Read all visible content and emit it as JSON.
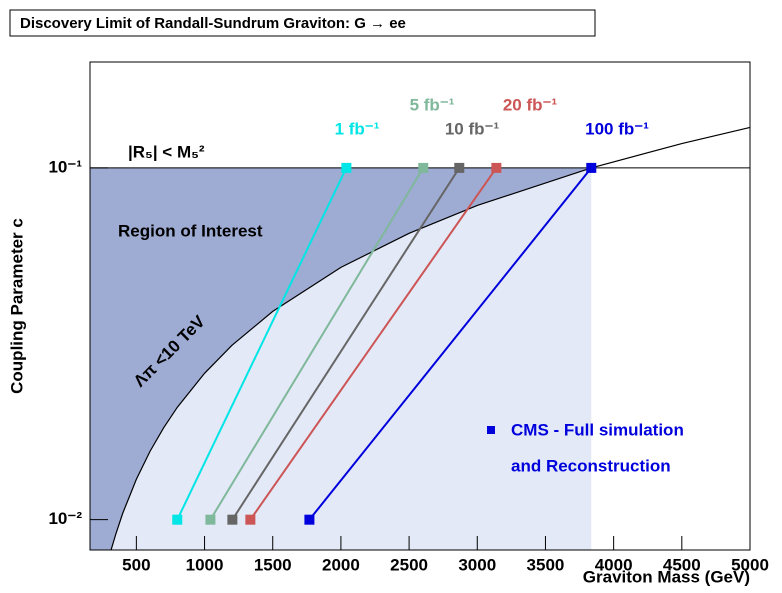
{
  "chart_data": {
    "type": "line",
    "title": "Discovery Limit of Randall-Sundrum Graviton: G → ee",
    "x_label": "Graviton Mass (GeV)",
    "y_label": "Coupling Parameter c",
    "xlim": [
      160,
      5000
    ],
    "ylim": [
      0.0082,
      0.2
    ],
    "log_y": true,
    "xticks": [
      500,
      1000,
      1500,
      2000,
      2500,
      3000,
      3500,
      4000,
      4500,
      5000
    ],
    "yticks": [
      {
        "value": 0.01,
        "label": "10⁻²"
      },
      {
        "value": 0.1,
        "label": "10⁻¹"
      }
    ],
    "series": [
      {
        "name": "1 fb⁻¹",
        "color": "#00e5e5",
        "x": [
          800,
          2040
        ],
        "values": [
          0.01,
          0.1
        ]
      },
      {
        "name": "5 fb⁻¹",
        "color": "#7fb89a",
        "x": [
          1043,
          2604
        ],
        "values": [
          0.01,
          0.1
        ]
      },
      {
        "name": "10 fb⁻¹",
        "color": "#666666",
        "x": [
          1204,
          2868
        ],
        "values": [
          0.01,
          0.1
        ]
      },
      {
        "name": "20 fb⁻¹",
        "color": "#cc5555",
        "x": [
          1336,
          3140
        ],
        "values": [
          0.01,
          0.1
        ]
      },
      {
        "name": "100 fb⁻¹",
        "color": "#0000dd",
        "x": [
          1769,
          3836
        ],
        "values": [
          0.01,
          0.1
        ]
      }
    ],
    "curve": {
      "name": "Λπ <10 TeV",
      "color": "#000000",
      "x": [
        314,
        350,
        400,
        500,
        600,
        700,
        800,
        1000,
        1200,
        1500,
        2000,
        2500,
        3000,
        3836,
        4500,
        5000
      ],
      "values": [
        0.00819,
        0.00912,
        0.01043,
        0.01303,
        0.01564,
        0.01825,
        0.02086,
        0.02607,
        0.03128,
        0.0391,
        0.05214,
        0.06517,
        0.07821,
        0.1,
        0.1173,
        0.1303
      ]
    },
    "bound": {
      "label": "|R₅| < M₅²",
      "value": 0.1
    },
    "region_label": "Region of Interest",
    "legend": [
      "CMS - Full simulation",
      "and Reconstruction"
    ]
  }
}
